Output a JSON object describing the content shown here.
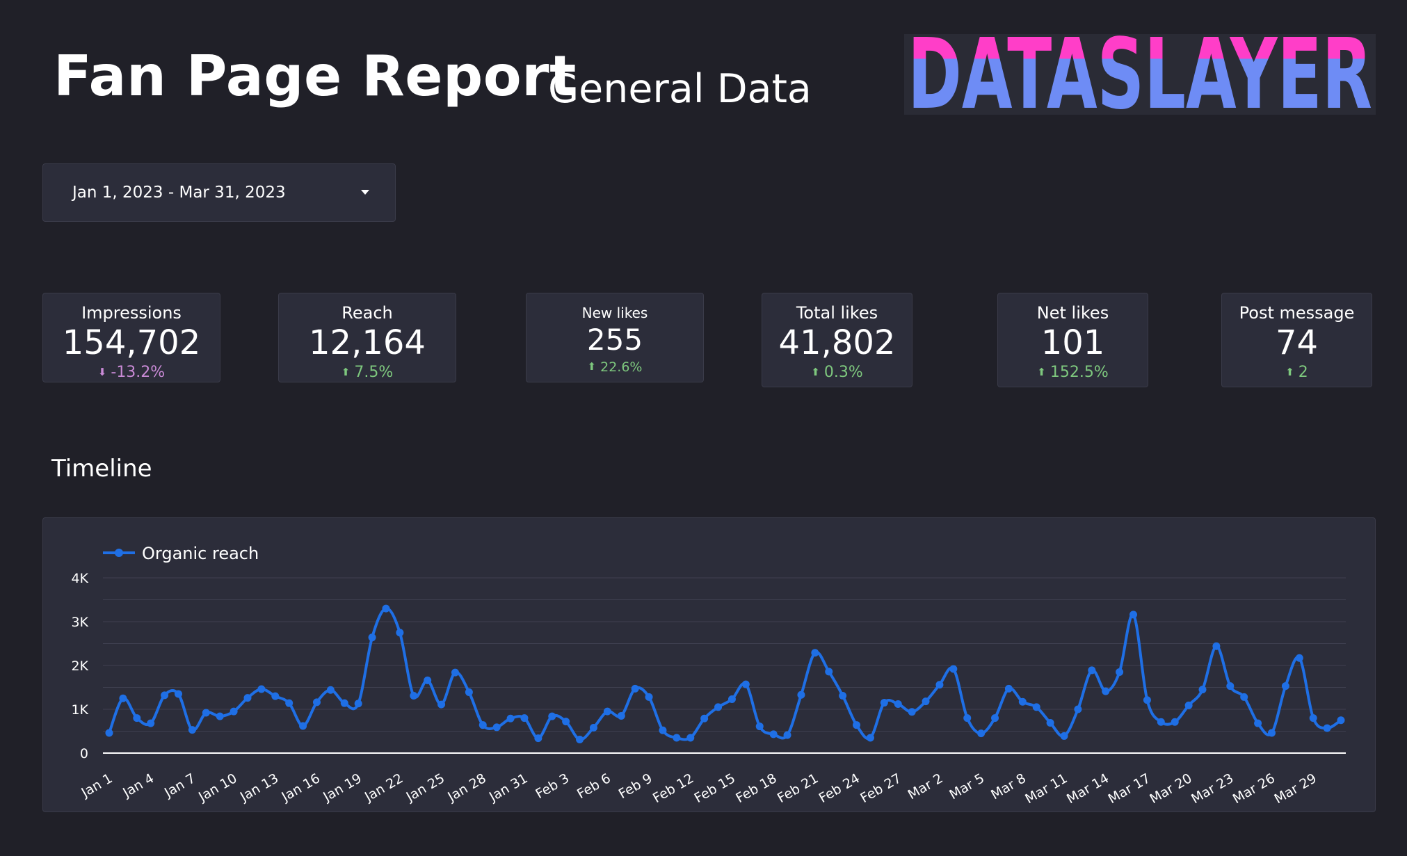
{
  "header": {
    "title": "Fan Page Report",
    "subtitle": "General Data",
    "logo_text": "DATASLAYER",
    "logo_colors": {
      "top": "#ff3ec8",
      "bottom": "#6e8cf5",
      "background": "#2a2b35"
    }
  },
  "date_range": {
    "label": "Jan 1, 2023 - Mar 31, 2023",
    "icon": "caret-down-icon"
  },
  "kpis": [
    {
      "label": "Impressions",
      "value": "154,702",
      "delta": "-13.2%",
      "direction": "down"
    },
    {
      "label": "Reach",
      "value": "12,164",
      "delta": "7.5%",
      "direction": "up"
    },
    {
      "label": "New likes",
      "value": "255",
      "delta": "22.6%",
      "direction": "up"
    },
    {
      "label": "Total likes",
      "value": "41,802",
      "delta": "0.3%",
      "direction": "up"
    },
    {
      "label": "Net likes",
      "value": "101",
      "delta": "152.5%",
      "direction": "up"
    },
    {
      "label": "Post message",
      "value": "74",
      "delta": "2",
      "direction": "up"
    }
  ],
  "timeline": {
    "title": "Timeline"
  },
  "chart_data": {
    "type": "line",
    "xlabel": "",
    "ylabel": "",
    "ylim": [
      0,
      4000
    ],
    "y_ticks": [
      0,
      1000,
      2000,
      3000,
      4000
    ],
    "y_tick_labels": [
      "0",
      "1K",
      "2K",
      "3K",
      "4K"
    ],
    "grid": true,
    "legend": "top-left",
    "x_tick_labels": [
      "Jan 1",
      "Jan 4",
      "Jan 7",
      "Jan 10",
      "Jan 13",
      "Jan 16",
      "Jan 19",
      "Jan 22",
      "Jan 25",
      "Jan 28",
      "Jan 31",
      "Feb 3",
      "Feb 6",
      "Feb 9",
      "Feb 12",
      "Feb 15",
      "Feb 18",
      "Feb 21",
      "Feb 24",
      "Feb 27",
      "Mar 2",
      "Mar 5",
      "Mar 8",
      "Mar 11",
      "Mar 14",
      "Mar 17",
      "Mar 20",
      "Mar 23",
      "Mar 26",
      "Mar 29"
    ],
    "x_tick_step": 3,
    "series": [
      {
        "name": "Organic reach",
        "color": "#1f6fe5",
        "values": [
          460,
          1250,
          800,
          680,
          1320,
          1350,
          530,
          920,
          840,
          950,
          1260,
          1460,
          1300,
          1140,
          620,
          1160,
          1440,
          1140,
          1130,
          2640,
          3300,
          2750,
          1310,
          1660,
          1110,
          1840,
          1390,
          640,
          590,
          790,
          800,
          340,
          840,
          720,
          310,
          580,
          950,
          850,
          1470,
          1280,
          520,
          350,
          350,
          790,
          1050,
          1230,
          1570,
          610,
          430,
          410,
          1330,
          2290,
          1860,
          1310,
          640,
          350,
          1150,
          1120,
          940,
          1180,
          1560,
          1920,
          800,
          450,
          800,
          1470,
          1170,
          1050,
          690,
          390,
          1000,
          1890,
          1410,
          1850,
          3160,
          1210,
          710,
          710,
          1090,
          1450,
          2440,
          1530,
          1280,
          680,
          460,
          1530,
          2170,
          800,
          570,
          750
        ]
      }
    ]
  }
}
